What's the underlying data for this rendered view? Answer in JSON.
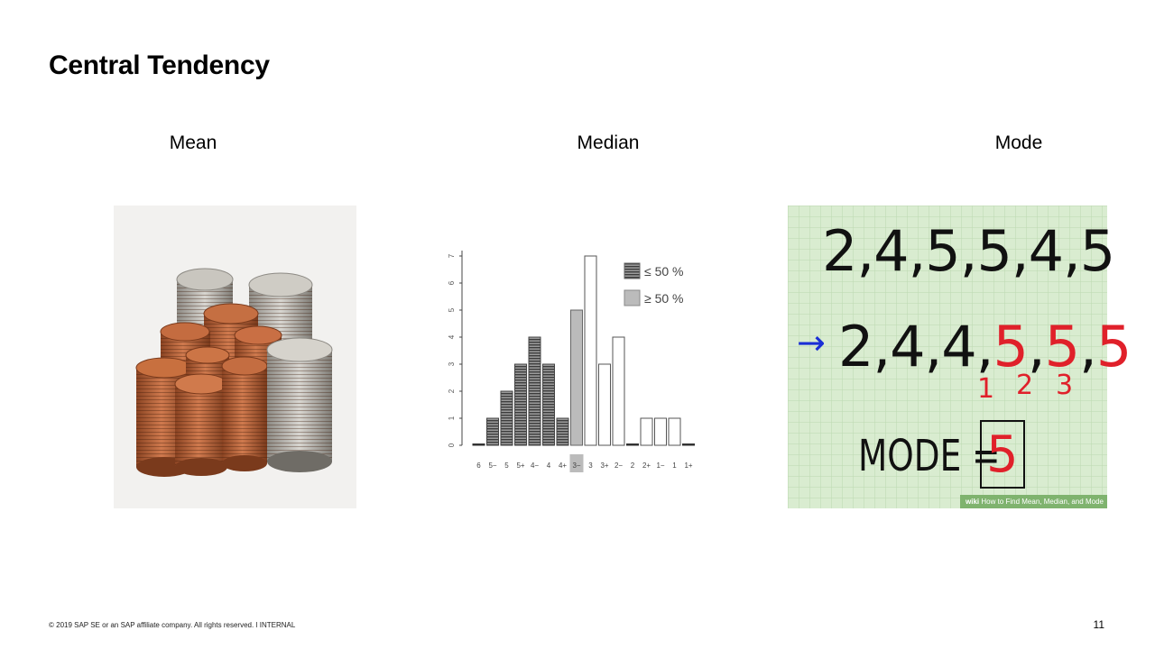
{
  "slide": {
    "title": "Central Tendency",
    "page_number": "11",
    "footer": "© 2019 SAP SE or an SAP affiliate company. All rights reserved.  ǀ  INTERNAL"
  },
  "columns": [
    {
      "label": "Mean"
    },
    {
      "label": "Median"
    },
    {
      "label": "Mode"
    }
  ],
  "median_chart": {
    "legend": [
      "≤ 50 %",
      "≥ 50 %"
    ],
    "colors": {
      "hatched": "#555555",
      "shaded": "#bbbbbb",
      "outline": "#ffffff"
    }
  },
  "mode_board": {
    "line1": "2,4,5,5,4,5",
    "arrow": "→",
    "line2_black": "2,4,4,",
    "line2_red": [
      "5",
      "5",
      "5"
    ],
    "counts": [
      "1",
      "2",
      "3"
    ],
    "mode_label": "MODE =",
    "mode_value": "5",
    "badge_prefix": "wiki",
    "badge_text": "How to Find Mean, Median, and Mode",
    "colors": {
      "ink": "#111111",
      "red": "#e0202a",
      "blue": "#1b2fd6",
      "grid": "#bcd9b0"
    }
  },
  "chart_data": {
    "type": "bar",
    "title": "",
    "xlabel": "",
    "ylabel": "",
    "categories": [
      "6",
      "5−",
      "5",
      "5+",
      "4−",
      "4",
      "4+",
      "3−",
      "3",
      "3+",
      "2−",
      "2",
      "2+",
      "1−",
      "1",
      "1+"
    ],
    "values": [
      0,
      1,
      2,
      3,
      4,
      3,
      1,
      5,
      7,
      3,
      4,
      0,
      1,
      1,
      1,
      0
    ],
    "styles": [
      "hatched",
      "hatched",
      "hatched",
      "hatched",
      "hatched",
      "hatched",
      "hatched",
      "shaded",
      "outline",
      "outline",
      "outline",
      "outline",
      "outline",
      "outline",
      "outline",
      "outline"
    ],
    "highlighted_category": "3−",
    "y_ticks": [
      "0",
      "1",
      "2",
      "3",
      "4",
      "5",
      "6",
      "7"
    ],
    "ylim": [
      0,
      7
    ],
    "legend": [
      "≤ 50 %",
      "≥ 50 %"
    ],
    "legend_position": "top-right",
    "grid": false
  }
}
